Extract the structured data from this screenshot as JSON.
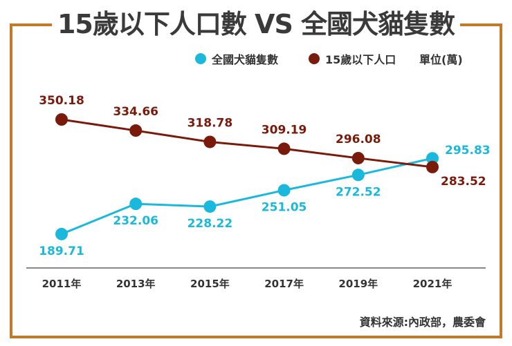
{
  "chart_data": {
    "type": "line",
    "title": "15歲以下人口數 VS 全國犬貓隻數",
    "unit": "單位(萬)",
    "source": "資料來源:內政部，農委會",
    "categories": [
      "2011年",
      "2013年",
      "2015年",
      "2017年",
      "2019年",
      "2021年"
    ],
    "series": [
      {
        "name": "全國犬貓隻數",
        "color": "#1bb8dd",
        "values": [
          189.71,
          232.06,
          228.22,
          251.05,
          272.52,
          295.83
        ]
      },
      {
        "name": "15歲以下人口",
        "color": "#7a1a0a",
        "values": [
          350.18,
          334.66,
          318.78,
          309.19,
          296.08,
          283.52
        ]
      }
    ],
    "legend": "top-right",
    "grid": false,
    "frame_color": "#c07a2a"
  }
}
